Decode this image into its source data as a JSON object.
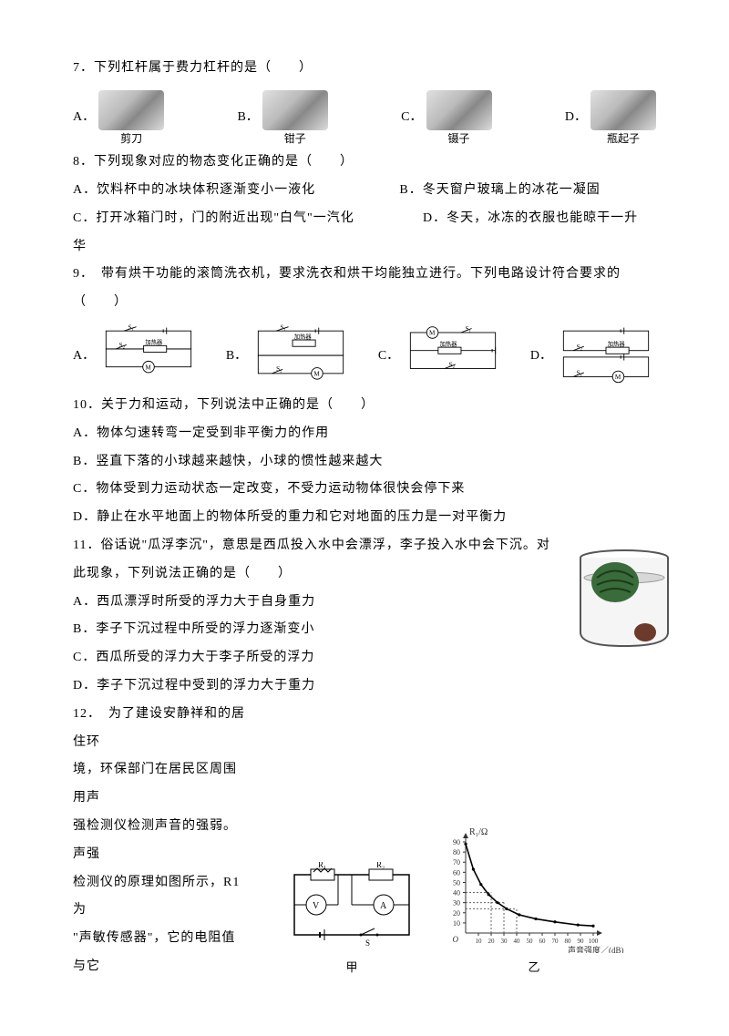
{
  "q7": {
    "stem": "7．下列杠杆属于费力杠杆的是（　　）",
    "opts": [
      {
        "letter": "A．",
        "caption": "剪刀"
      },
      {
        "letter": "B．",
        "caption": "钳子"
      },
      {
        "letter": "C．",
        "caption": "镊子"
      },
      {
        "letter": "D．",
        "caption": "瓶起子"
      }
    ]
  },
  "q8": {
    "stem": "8．下列现象对应的物态变化正确的是（　　）",
    "a": "A．饮料杯中的冰块体积逐渐变小一液化",
    "b": "B．冬天窗户玻璃上的冰花一凝固",
    "c": "C．打开冰箱门时，门的附近出现\"白气\"一汽化",
    "d": "D．冬天，冰冻的衣服也能晾干一升",
    "d2": "华"
  },
  "q9": {
    "stem": "9．　带有烘干功能的滚筒洗衣机，要求洗衣和烘干均能独立进行。下列电路设计符合要求的",
    "stem2": "（　　）",
    "labels": {
      "heater": "加热器",
      "s1": "S₁",
      "s2": "S₂",
      "m": "M"
    },
    "letters": [
      "A．",
      "B．",
      "C．",
      "D．"
    ]
  },
  "q10": {
    "stem": "10．关于力和运动，下列说法中正确的是（　　）",
    "a": "A．物体匀速转弯一定受到非平衡力的作用",
    "b": "B．竖直下落的小球越来越快，小球的惯性越来越大",
    "c": "C．物体受到力运动状态一定改变，不受力运动物体很快会停下来",
    "d": "D．静止在水平地面上的物体所受的重力和它对地面的压力是一对平衡力"
  },
  "q11": {
    "stem1": "11．俗话说\"瓜浮李沉\"，意思是西瓜投入水中会漂浮，李子投入水中会下沉。对",
    "stem2": "此现象，下列说法正确的是（　　）",
    "a": "A．西瓜漂浮时所受的浮力大于自身重力",
    "b": "B．李子下沉过程中所受的浮力逐渐变小",
    "c": "C．西瓜所受的浮力大于李子所受的浮力",
    "d": "D．李子下沉过程中受到的浮力大于重力"
  },
  "q12": {
    "l1": "12．　为了建设安静祥和的居住环",
    "l2": "境，环保部门在居民区周围用声",
    "l3": "强检测仪检测声音的强弱。声强",
    "l4": "检测仪的原理如图所示，R1 为",
    "l5": "\"声敏传感器\"，它的电阻值与它",
    "cap1": "甲",
    "cap2": "乙",
    "chart": {
      "ylabel": "R₁/Ω",
      "xlabel": "声音强度／(dB)",
      "yticks": [
        10,
        20,
        30,
        40,
        50,
        60,
        70,
        80,
        90
      ],
      "xticks": [
        10,
        20,
        30,
        40,
        50,
        60,
        70,
        80,
        90,
        100
      ],
      "curve": [
        [
          0,
          88
        ],
        [
          6,
          63
        ],
        [
          12,
          48
        ],
        [
          18,
          38
        ],
        [
          25,
          30
        ],
        [
          32,
          24
        ],
        [
          42,
          18
        ],
        [
          55,
          14
        ],
        [
          70,
          11
        ],
        [
          88,
          8
        ],
        [
          100,
          7
        ]
      ],
      "axis_color": "#333",
      "grid_color": "#888",
      "curve_color": "#000",
      "dash_color": "#666"
    },
    "circuit": {
      "r1": "R₁",
      "r2": "R₂",
      "v": "V",
      "a": "A",
      "s": "S"
    }
  }
}
